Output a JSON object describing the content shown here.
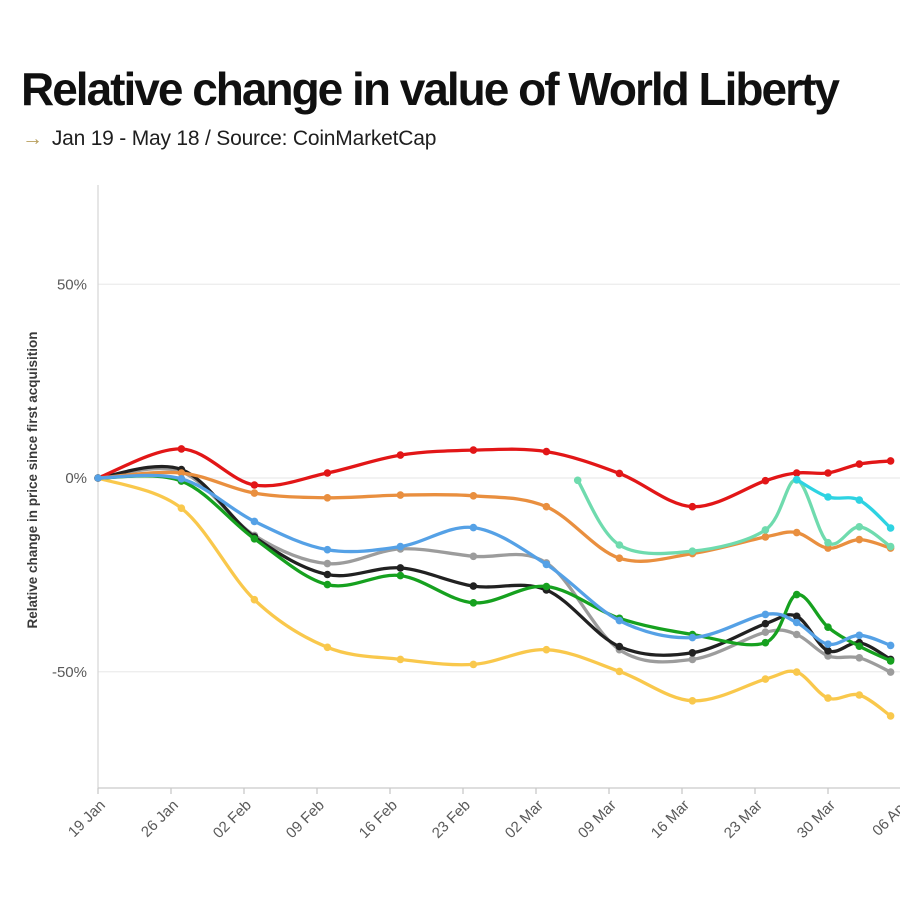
{
  "header": {
    "title": "Relative change in value of World Liberty",
    "subtitle_arrow": "→",
    "subtitle": "Jan 19 - May 18 / Source: CoinMarketCap"
  },
  "chart_data": {
    "type": "line",
    "title": "Relative change in value of World Liberty",
    "subtitle": "Jan 19 - May 18 / Source: CoinMarketCap",
    "ylabel": "Relative change in price since first acquisition",
    "xlabel": "",
    "x_unit": "days since 19 Jan",
    "xlim": [
      0,
      77
    ],
    "ylim": [
      -80,
      78
    ],
    "grid": "horizontal-only",
    "legend": "none",
    "y_ticks": [
      {
        "value": 50,
        "label": "50%"
      },
      {
        "value": 0,
        "label": "0%"
      },
      {
        "value": -50,
        "label": "-50%"
      }
    ],
    "x_ticks": [
      {
        "day": 0,
        "label": "19 Jan"
      },
      {
        "day": 7,
        "label": "26 Jan"
      },
      {
        "day": 14,
        "label": "02 Feb"
      },
      {
        "day": 21,
        "label": "09 Feb"
      },
      {
        "day": 28,
        "label": "16 Feb"
      },
      {
        "day": 35,
        "label": "23 Feb"
      },
      {
        "day": 42,
        "label": "02 Mar"
      },
      {
        "day": 49,
        "label": "09 Mar"
      },
      {
        "day": 56,
        "label": "16 Mar"
      },
      {
        "day": 63,
        "label": "23 Mar"
      },
      {
        "day": 70,
        "label": "30 Mar"
      },
      {
        "day": 77,
        "label": "06 Apr"
      }
    ],
    "series": [
      {
        "name": "gold",
        "color": "#f9c84c",
        "points": [
          [
            0,
            0
          ],
          [
            8,
            -7.8
          ],
          [
            15,
            -31.4
          ],
          [
            22,
            -43.7
          ],
          [
            29,
            -46.8
          ],
          [
            36,
            -48.1
          ],
          [
            43,
            -44.3
          ],
          [
            50,
            -49.9
          ],
          [
            57,
            -57.5
          ],
          [
            64,
            -51.9
          ],
          [
            67,
            -50.1
          ],
          [
            70,
            -56.8
          ],
          [
            73,
            -56.0
          ],
          [
            76,
            -61.4
          ]
        ]
      },
      {
        "name": "gray",
        "color": "#9c9c9c",
        "points": [
          [
            0,
            0
          ],
          [
            8,
            1.6
          ],
          [
            15,
            -14.8
          ],
          [
            22,
            -22.1
          ],
          [
            29,
            -18.3
          ],
          [
            36,
            -20.2
          ],
          [
            43,
            -21.9
          ],
          [
            50,
            -44.3
          ],
          [
            57,
            -46.8
          ],
          [
            64,
            -39.8
          ],
          [
            67,
            -40.4
          ],
          [
            70,
            -45.9
          ],
          [
            73,
            -46.4
          ],
          [
            76,
            -50.1
          ]
        ]
      },
      {
        "name": "black",
        "color": "#212121",
        "points": [
          [
            0,
            0
          ],
          [
            8,
            2.2
          ],
          [
            15,
            -15.2
          ],
          [
            22,
            -24.9
          ],
          [
            29,
            -23.2
          ],
          [
            36,
            -27.9
          ],
          [
            43,
            -28.9
          ],
          [
            50,
            -43.5
          ],
          [
            57,
            -45.1
          ],
          [
            64,
            -37.6
          ],
          [
            67,
            -35.7
          ],
          [
            70,
            -44.6
          ],
          [
            73,
            -42.5
          ],
          [
            76,
            -46.8
          ]
        ]
      },
      {
        "name": "green",
        "color": "#16a11f",
        "points": [
          [
            0,
            0
          ],
          [
            8,
            -0.8
          ],
          [
            15,
            -15.7
          ],
          [
            22,
            -27.5
          ],
          [
            29,
            -25.2
          ],
          [
            36,
            -32.2
          ],
          [
            43,
            -28.0
          ],
          [
            50,
            -36.2
          ],
          [
            57,
            -40.4
          ],
          [
            64,
            -42.5
          ],
          [
            67,
            -30.1
          ],
          [
            70,
            -38.5
          ],
          [
            73,
            -43.4
          ],
          [
            76,
            -47.2
          ]
        ]
      },
      {
        "name": "red",
        "color": "#e21617",
        "points": [
          [
            0,
            0
          ],
          [
            8,
            7.5
          ],
          [
            15,
            -1.8
          ],
          [
            22,
            1.3
          ],
          [
            29,
            5.9
          ],
          [
            36,
            7.2
          ],
          [
            43,
            6.8
          ],
          [
            50,
            1.2
          ],
          [
            57,
            -7.4
          ],
          [
            64,
            -0.7
          ],
          [
            67,
            1.3
          ],
          [
            70,
            1.3
          ],
          [
            73,
            3.6
          ],
          [
            76,
            4.4
          ]
        ]
      },
      {
        "name": "orange",
        "color": "#e98f3f",
        "points": [
          [
            0,
            0
          ],
          [
            8,
            1.3
          ],
          [
            15,
            -3.9
          ],
          [
            22,
            -5.1
          ],
          [
            29,
            -4.4
          ],
          [
            36,
            -4.6
          ],
          [
            43,
            -7.4
          ],
          [
            50,
            -20.7
          ],
          [
            57,
            -19.5
          ],
          [
            64,
            -15.2
          ],
          [
            67,
            -14.1
          ],
          [
            70,
            -18.1
          ],
          [
            73,
            -15.9
          ],
          [
            76,
            -18.1
          ]
        ]
      },
      {
        "name": "blue",
        "color": "#55a1e6",
        "points": [
          [
            0,
            0
          ],
          [
            8,
            -0.2
          ],
          [
            15,
            -11.2
          ],
          [
            22,
            -18.5
          ],
          [
            29,
            -17.7
          ],
          [
            36,
            -12.8
          ],
          [
            43,
            -22.3
          ],
          [
            50,
            -36.8
          ],
          [
            57,
            -41.2
          ],
          [
            64,
            -35.2
          ],
          [
            67,
            -37.3
          ],
          [
            70,
            -42.9
          ],
          [
            73,
            -40.6
          ],
          [
            76,
            -43.2
          ]
        ]
      },
      {
        "name": "mint",
        "color": "#6fdbae",
        "points": [
          [
            46,
            -0.6
          ],
          [
            50,
            -17.3
          ],
          [
            57,
            -18.9
          ],
          [
            64,
            -13.4
          ],
          [
            67,
            -0.5
          ],
          [
            70,
            -16.7
          ],
          [
            73,
            -12.6
          ],
          [
            76,
            -17.7
          ]
        ]
      },
      {
        "name": "cyan",
        "color": "#2ed3e2",
        "points": [
          [
            67,
            -0.4
          ],
          [
            70,
            -4.9
          ],
          [
            73,
            -5.7
          ],
          [
            76,
            -12.9
          ]
        ]
      }
    ]
  },
  "style_colors": {
    "grid": "#ebebeb",
    "axis": "#c9c9c9",
    "y_axis_line": "#d8d8d8",
    "tick_text": "#595959",
    "axis_title_text": "#3a3a3a",
    "subtitle_arrow": "#b9a05f"
  }
}
